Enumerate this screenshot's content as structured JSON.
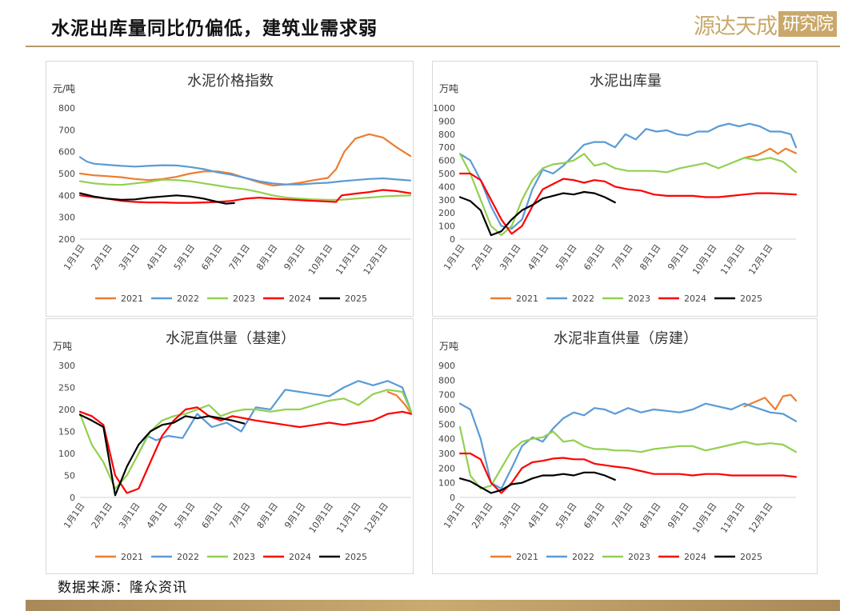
{
  "header": {
    "title": "水泥出库量同比仍偏低，建筑业需求弱",
    "logo_text": "源达天成",
    "logo_box": "研究院"
  },
  "footer": {
    "source": "数据来源：隆众资讯"
  },
  "colors": {
    "2021": "#ED7D31",
    "2022": "#5B9BD5",
    "2023": "#92D050",
    "2024": "#FF0000",
    "2025": "#000000",
    "accent": "#b49a6a"
  },
  "chart_data": [
    {
      "type": "line",
      "title": "水泥价格指数",
      "ylabel": "元/吨",
      "ylim": [
        200,
        800
      ],
      "yticks": [
        200,
        300,
        400,
        500,
        600,
        700,
        800
      ],
      "xticks": [
        "1月1日",
        "2月1日",
        "3月1日",
        "4月1日",
        "5月1日",
        "6月1日",
        "7月1日",
        "8月1日",
        "9月1日",
        "10月1日",
        "11月1日",
        "12月1日"
      ],
      "xmax": 12,
      "series": [
        {
          "name": "2021",
          "color": "#ED7D31",
          "x": [
            0,
            0.5,
            1,
            1.5,
            2,
            2.5,
            3,
            3.5,
            4,
            4.5,
            5,
            5.5,
            6,
            6.5,
            7,
            7.5,
            8,
            8.5,
            9,
            9.3,
            9.6,
            10,
            10.5,
            11,
            11.5,
            12
          ],
          "y": [
            500,
            492,
            488,
            483,
            475,
            470,
            475,
            485,
            500,
            510,
            510,
            500,
            480,
            460,
            445,
            450,
            458,
            470,
            480,
            520,
            600,
            660,
            680,
            665,
            620,
            580
          ]
        },
        {
          "name": "2022",
          "color": "#5B9BD5",
          "x": [
            0,
            0.25,
            0.5,
            1,
            1.5,
            2,
            2.5,
            3,
            3.5,
            4,
            4.5,
            5,
            5.5,
            6,
            6.5,
            7,
            7.5,
            8,
            8.5,
            9,
            9.5,
            10,
            10.5,
            11,
            11.5,
            12
          ],
          "y": [
            575,
            555,
            545,
            540,
            535,
            532,
            535,
            538,
            537,
            530,
            520,
            505,
            495,
            480,
            465,
            455,
            450,
            450,
            455,
            458,
            465,
            470,
            475,
            478,
            473,
            468
          ]
        },
        {
          "name": "2023",
          "color": "#92D050",
          "x": [
            0,
            0.5,
            1,
            1.5,
            2,
            2.5,
            3,
            3.5,
            4,
            4.5,
            5,
            5.5,
            6,
            6.5,
            7,
            7.5,
            8,
            8.5,
            9,
            9.5,
            10,
            10.5,
            11,
            11.5,
            12
          ],
          "y": [
            465,
            455,
            450,
            448,
            455,
            462,
            472,
            470,
            465,
            455,
            445,
            435,
            428,
            415,
            400,
            390,
            385,
            382,
            380,
            380,
            385,
            390,
            395,
            398,
            400
          ]
        },
        {
          "name": "2024",
          "color": "#FF0000",
          "x": [
            0,
            0.5,
            1,
            1.5,
            2,
            2.5,
            3,
            3.5,
            4,
            4.5,
            5,
            5.5,
            6,
            6.5,
            7,
            7.5,
            8,
            8.5,
            9,
            9.3,
            9.5,
            10,
            10.5,
            11,
            11.5,
            12
          ],
          "y": [
            400,
            392,
            385,
            375,
            370,
            368,
            368,
            366,
            366,
            368,
            370,
            375,
            385,
            390,
            385,
            382,
            378,
            375,
            372,
            370,
            400,
            408,
            415,
            425,
            420,
            410
          ]
        },
        {
          "name": "2025",
          "color": "#000000",
          "x": [
            0,
            0.5,
            1,
            1.5,
            2,
            2.5,
            3,
            3.5,
            4,
            4.5,
            5,
            5.3,
            5.6
          ],
          "y": [
            410,
            395,
            385,
            380,
            382,
            390,
            395,
            400,
            395,
            385,
            370,
            362,
            365
          ]
        }
      ]
    },
    {
      "type": "line",
      "title": "水泥出库量",
      "ylabel": "万吨",
      "ylim": [
        0,
        1000
      ],
      "yticks": [
        0,
        100,
        200,
        300,
        400,
        500,
        600,
        700,
        800,
        900,
        1000
      ],
      "xticks": [
        "1月1日",
        "2月1日",
        "3月1日",
        "4月1日",
        "5月1日",
        "6月1日",
        "7月1日",
        "8月1日",
        "9月1日",
        "10月1日",
        "11月1日",
        "12月1日"
      ],
      "xmax": 13,
      "series": [
        {
          "name": "2021",
          "color": "#ED7D31",
          "x": [
            11,
            11.5,
            12,
            12.3,
            12.6,
            13
          ],
          "y": [
            620,
            640,
            690,
            650,
            690,
            655
          ]
        },
        {
          "name": "2022",
          "color": "#5B9BD5",
          "x": [
            0,
            0.4,
            0.8,
            1.2,
            1.6,
            2,
            2.4,
            2.8,
            3.2,
            3.6,
            4,
            4.4,
            4.8,
            5.2,
            5.6,
            6,
            6.4,
            6.8,
            7.2,
            7.6,
            8,
            8.4,
            8.8,
            9.2,
            9.6,
            10,
            10.4,
            10.8,
            11.2,
            11.6,
            12,
            12.4,
            12.8,
            13
          ],
          "y": [
            650,
            600,
            450,
            250,
            100,
            80,
            150,
            380,
            530,
            500,
            560,
            640,
            720,
            740,
            740,
            700,
            800,
            760,
            840,
            820,
            830,
            800,
            790,
            820,
            820,
            860,
            880,
            860,
            880,
            860,
            820,
            820,
            800,
            700
          ]
        },
        {
          "name": "2023",
          "color": "#92D050",
          "x": [
            0,
            0.4,
            0.8,
            1.2,
            1.6,
            2,
            2.4,
            2.8,
            3.2,
            3.6,
            4,
            4.4,
            4.8,
            5.2,
            5.6,
            6,
            6.5,
            7,
            7.5,
            8,
            8.5,
            9,
            9.5,
            10,
            10.5,
            11,
            11.5,
            12,
            12.5,
            13
          ],
          "y": [
            650,
            500,
            300,
            100,
            30,
            100,
            300,
            450,
            540,
            570,
            580,
            600,
            650,
            560,
            580,
            540,
            520,
            520,
            520,
            510,
            540,
            560,
            580,
            540,
            580,
            620,
            600,
            620,
            590,
            510
          ]
        },
        {
          "name": "2024",
          "color": "#FF0000",
          "x": [
            0,
            0.4,
            0.8,
            1.2,
            1.6,
            2,
            2.4,
            2.8,
            3.2,
            3.6,
            4,
            4.4,
            4.8,
            5.2,
            5.6,
            6,
            6.5,
            7,
            7.5,
            8,
            8.5,
            9,
            9.5,
            10,
            10.5,
            11,
            11.5,
            12,
            12.5,
            13
          ],
          "y": [
            500,
            500,
            450,
            300,
            150,
            40,
            100,
            250,
            380,
            420,
            460,
            450,
            430,
            450,
            440,
            400,
            380,
            370,
            340,
            330,
            330,
            330,
            320,
            320,
            330,
            340,
            350,
            350,
            345,
            340
          ]
        },
        {
          "name": "2025",
          "color": "#000000",
          "x": [
            0,
            0.4,
            0.8,
            1.2,
            1.6,
            2,
            2.4,
            2.8,
            3.2,
            3.6,
            4,
            4.4,
            4.8,
            5.2,
            5.6,
            6
          ],
          "y": [
            320,
            290,
            220,
            30,
            60,
            150,
            220,
            260,
            310,
            330,
            350,
            340,
            360,
            350,
            320,
            280
          ]
        }
      ]
    },
    {
      "type": "line",
      "title": "水泥直供量（基建）",
      "ylabel": "万吨",
      "ylim": [
        0,
        300
      ],
      "yticks": [
        0,
        50,
        100,
        150,
        200,
        250,
        300
      ],
      "xticks": [
        "1月1日",
        "2月1日",
        "3月1日",
        "4月1日",
        "5月1日",
        "6月1日",
        "7月1日",
        "8月1日",
        "9月1日",
        "10月1日",
        "11月1日",
        "12月1日"
      ],
      "xmax": 11.3,
      "series": [
        {
          "name": "2021",
          "color": "#ED7D31",
          "x": [
            10.5,
            10.8,
            11.1,
            11.3
          ],
          "y": [
            240,
            232,
            210,
            190
          ]
        },
        {
          "name": "2022",
          "color": "#5B9BD5",
          "x": [
            2,
            2.3,
            2.6,
            3,
            3.5,
            4,
            4.5,
            5,
            5.5,
            6,
            6.5,
            7,
            7.5,
            8,
            8.5,
            9,
            9.5,
            10,
            10.5,
            11,
            11.3
          ],
          "y": [
            100,
            140,
            130,
            140,
            135,
            190,
            160,
            170,
            150,
            205,
            200,
            245,
            240,
            235,
            230,
            250,
            265,
            255,
            265,
            250,
            195
          ]
        },
        {
          "name": "2023",
          "color": "#92D050",
          "x": [
            0,
            0.4,
            0.8,
            1.2,
            1.6,
            2,
            2.4,
            2.8,
            3.2,
            3.6,
            4,
            4.4,
            4.8,
            5.2,
            5.6,
            6,
            6.5,
            7,
            7.5,
            8,
            8.5,
            9,
            9.5,
            10,
            10.5,
            11,
            11.3
          ],
          "y": [
            190,
            120,
            80,
            20,
            50,
            100,
            150,
            175,
            185,
            190,
            200,
            210,
            185,
            195,
            200,
            200,
            195,
            200,
            200,
            210,
            220,
            225,
            210,
            235,
            245,
            240,
            195
          ]
        },
        {
          "name": "2024",
          "color": "#FF0000",
          "x": [
            0,
            0.4,
            0.8,
            1.2,
            1.6,
            2,
            2.4,
            2.8,
            3.2,
            3.6,
            4,
            4.4,
            4.8,
            5.2,
            5.6,
            6,
            6.5,
            7,
            7.5,
            8,
            8.5,
            9,
            9.5,
            10,
            10.5,
            11,
            11.3
          ],
          "y": [
            195,
            185,
            165,
            50,
            10,
            20,
            80,
            140,
            175,
            200,
            205,
            185,
            175,
            185,
            180,
            175,
            170,
            165,
            160,
            165,
            170,
            165,
            170,
            175,
            190,
            195,
            190
          ]
        },
        {
          "name": "2025",
          "color": "#000000",
          "x": [
            0,
            0.4,
            0.8,
            1.2,
            1.6,
            2,
            2.4,
            2.8,
            3.2,
            3.6,
            4,
            4.4,
            4.8,
            5.2,
            5.6
          ],
          "y": [
            188,
            175,
            160,
            5,
            70,
            120,
            150,
            165,
            170,
            185,
            180,
            185,
            180,
            175,
            168
          ]
        }
      ]
    },
    {
      "type": "line",
      "title": "水泥非直供量（房建）",
      "ylabel": "万吨",
      "ylim": [
        0,
        900
      ],
      "yticks": [
        0,
        100,
        200,
        300,
        400,
        500,
        600,
        700,
        800,
        900
      ],
      "xticks": [
        "1月1日",
        "2月1日",
        "3月1日",
        "4月1日",
        "5月1日",
        "6月1日",
        "7月1日",
        "8月1日",
        "9月1日",
        "10月1日",
        "11月1日",
        "12月1日"
      ],
      "xmax": 13,
      "series": [
        {
          "name": "2021",
          "color": "#ED7D31",
          "x": [
            11,
            11.4,
            11.8,
            12.2,
            12.5,
            12.8,
            13
          ],
          "y": [
            620,
            650,
            680,
            600,
            690,
            700,
            660
          ]
        },
        {
          "name": "2022",
          "color": "#5B9BD5",
          "x": [
            0,
            0.4,
            0.8,
            1.2,
            1.6,
            2,
            2.4,
            2.8,
            3.2,
            3.6,
            4,
            4.4,
            4.8,
            5.2,
            5.6,
            6,
            6.5,
            7,
            7.5,
            8,
            8.5,
            9,
            9.5,
            10,
            10.5,
            11,
            11.5,
            12,
            12.5,
            13
          ],
          "y": [
            640,
            600,
            400,
            100,
            60,
            200,
            350,
            410,
            380,
            470,
            540,
            580,
            560,
            610,
            600,
            570,
            610,
            580,
            600,
            590,
            580,
            600,
            640,
            620,
            600,
            640,
            610,
            580,
            570,
            520
          ]
        },
        {
          "name": "2023",
          "color": "#92D050",
          "x": [
            0,
            0.4,
            0.8,
            1.2,
            1.6,
            2,
            2.4,
            2.8,
            3.2,
            3.6,
            4,
            4.4,
            4.8,
            5.2,
            5.6,
            6,
            6.5,
            7,
            7.5,
            8,
            8.5,
            9,
            9.5,
            10,
            10.5,
            11,
            11.5,
            12,
            12.5,
            13
          ],
          "y": [
            480,
            150,
            60,
            80,
            200,
            320,
            380,
            400,
            410,
            450,
            380,
            390,
            350,
            330,
            330,
            320,
            320,
            310,
            330,
            340,
            350,
            350,
            320,
            340,
            360,
            380,
            360,
            370,
            360,
            310
          ]
        },
        {
          "name": "2024",
          "color": "#FF0000",
          "x": [
            0,
            0.4,
            0.8,
            1.2,
            1.6,
            2,
            2.4,
            2.8,
            3.2,
            3.6,
            4,
            4.4,
            4.8,
            5.2,
            5.6,
            6,
            6.5,
            7,
            7.5,
            8,
            8.5,
            9,
            9.5,
            10,
            10.5,
            11,
            11.5,
            12,
            12.5,
            13
          ],
          "y": [
            300,
            300,
            260,
            100,
            30,
            100,
            200,
            240,
            250,
            265,
            270,
            260,
            260,
            230,
            220,
            210,
            200,
            180,
            160,
            160,
            160,
            150,
            160,
            160,
            150,
            150,
            150,
            150,
            150,
            140
          ]
        },
        {
          "name": "2025",
          "color": "#000000",
          "x": [
            0,
            0.4,
            0.8,
            1.2,
            1.6,
            2,
            2.4,
            2.8,
            3.2,
            3.6,
            4,
            4.4,
            4.8,
            5.2,
            5.6,
            6
          ],
          "y": [
            130,
            110,
            70,
            30,
            50,
            90,
            100,
            130,
            150,
            150,
            160,
            150,
            170,
            170,
            150,
            120
          ]
        }
      ]
    }
  ]
}
